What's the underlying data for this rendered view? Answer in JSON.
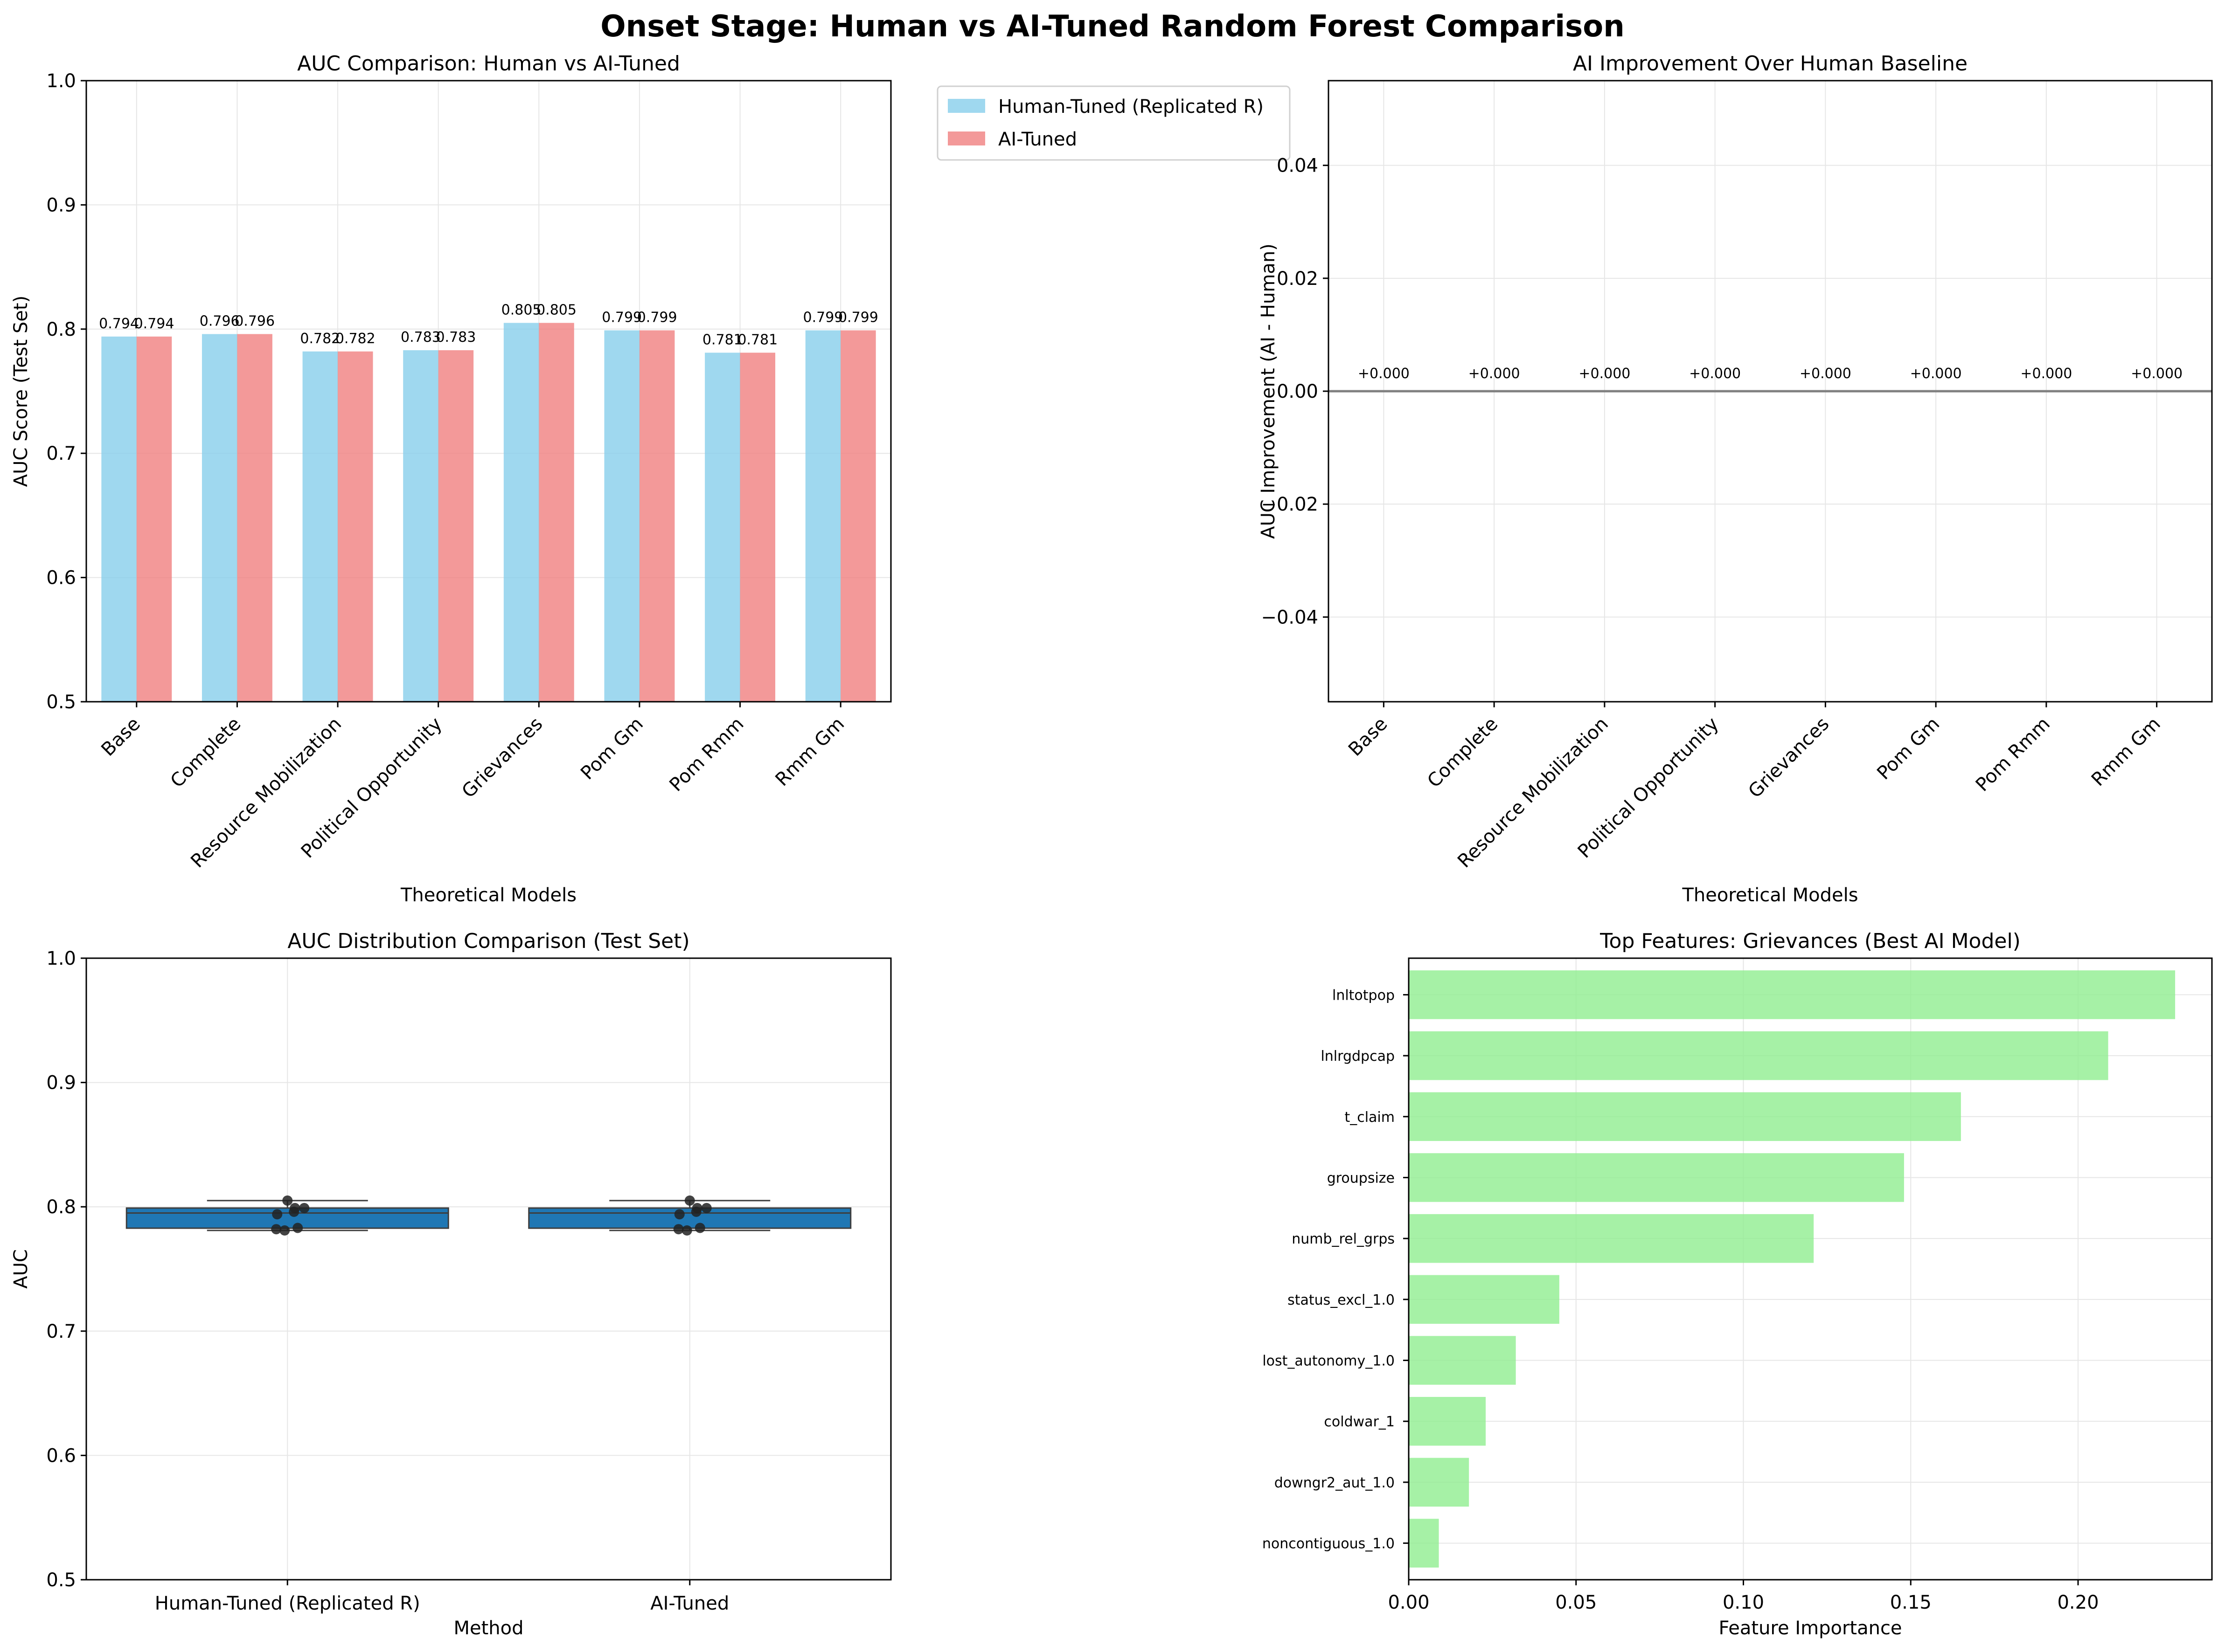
{
  "figure": {
    "suptitle": "Onset Stage: Human vs AI-Tuned Random Forest Comparison"
  },
  "colors": {
    "human": "#87ceeb",
    "ai": "#f08080",
    "box": "#1f77b4",
    "feature": "#90ee90",
    "grid": "#e6e6e6",
    "zero_line": "#808080"
  },
  "chart_data": [
    {
      "id": "auc",
      "type": "bar",
      "title": "AUC Comparison: Human vs AI-Tuned",
      "xlabel": "Theoretical Models",
      "ylabel": "AUC Score (Test Set)",
      "ylim": [
        0.5,
        1.0
      ],
      "yticks": [
        "0.5",
        "0.6",
        "0.7",
        "0.8",
        "0.9",
        "1.0"
      ],
      "categories": [
        "Base",
        "Complete",
        "Resource Mobilization",
        "Political Opportunity",
        "Grievances",
        "Pom Gm",
        "Pom Rmm",
        "Rmm Gm"
      ],
      "series": [
        {
          "name": "Human-Tuned (Replicated R)",
          "values": [
            0.794,
            0.796,
            0.782,
            0.783,
            0.805,
            0.799,
            0.781,
            0.799
          ]
        },
        {
          "name": "AI-Tuned",
          "values": [
            0.794,
            0.796,
            0.782,
            0.783,
            0.805,
            0.799,
            0.781,
            0.799
          ]
        }
      ],
      "legend_position": "outside upper-right",
      "grid": true
    },
    {
      "id": "improvement",
      "type": "bar",
      "title": "AI Improvement Over Human Baseline",
      "xlabel": "Theoretical Models",
      "ylabel": "AUC Improvement (AI - Human)",
      "ylim": [
        -0.055,
        0.055
      ],
      "yticks": [
        "0.04",
        "0.02",
        "0.00",
        "−0.02",
        "−0.04"
      ],
      "categories": [
        "Base",
        "Complete",
        "Resource Mobilization",
        "Political Opportunity",
        "Grievances",
        "Pom Gm",
        "Pom Rmm",
        "Rmm Gm"
      ],
      "values": [
        0,
        0,
        0,
        0,
        0,
        0,
        0,
        0
      ],
      "value_labels": [
        "+0.000",
        "+0.000",
        "+0.000",
        "+0.000",
        "+0.000",
        "+0.000",
        "+0.000",
        "+0.000"
      ],
      "grid": true
    },
    {
      "id": "distribution",
      "type": "box",
      "title": "AUC Distribution Comparison (Test Set)",
      "xlabel": "Method",
      "ylabel": "AUC",
      "ylim": [
        0.5,
        1.0
      ],
      "yticks": [
        "0.5",
        "0.6",
        "0.7",
        "0.8",
        "0.9",
        "1.0"
      ],
      "categories": [
        "Human-Tuned (Replicated R)",
        "AI-Tuned"
      ],
      "groups": [
        {
          "values": [
            0.794,
            0.796,
            0.782,
            0.783,
            0.805,
            0.799,
            0.781,
            0.799
          ],
          "q1": 0.7828,
          "median": 0.795,
          "q3": 0.799,
          "whisker_low": 0.781,
          "whisker_high": 0.805
        },
        {
          "values": [
            0.794,
            0.796,
            0.782,
            0.783,
            0.805,
            0.799,
            0.781,
            0.799
          ],
          "q1": 0.7828,
          "median": 0.795,
          "q3": 0.799,
          "whisker_low": 0.781,
          "whisker_high": 0.805
        }
      ],
      "grid": true
    },
    {
      "id": "features",
      "type": "barh",
      "title": "Top Features: Grievances (Best AI Model)",
      "xlabel": "Feature Importance",
      "xlim": [
        0.0,
        0.24
      ],
      "xticks": [
        "0.00",
        "0.05",
        "0.10",
        "0.15",
        "0.20"
      ],
      "categories": [
        "lnltotpop",
        "lnlrgdpcap",
        "t_claim",
        "groupsize",
        "numb_rel_grps",
        "status_excl_1.0",
        "lost_autonomy_1.0",
        "coldwar_1",
        "downgr2_aut_1.0",
        "noncontiguous_1.0"
      ],
      "values": [
        0.229,
        0.209,
        0.165,
        0.148,
        0.121,
        0.045,
        0.032,
        0.023,
        0.018,
        0.009
      ],
      "grid": true
    }
  ]
}
